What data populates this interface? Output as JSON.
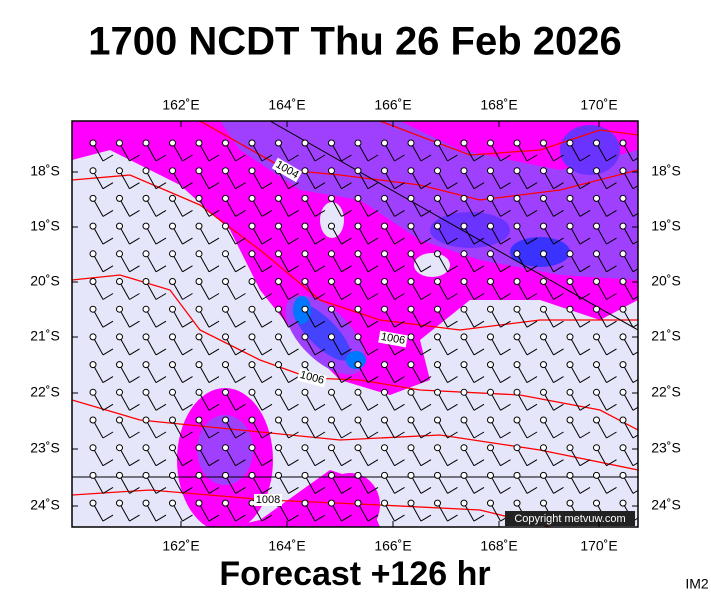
{
  "map": {
    "title": "1700 NCDT Thu 26 Feb 2026",
    "lon_labels": [
      "162˚E",
      "164˚E",
      "166˚E",
      "168˚E",
      "170˚E"
    ],
    "lat_labels": [
      "18˚S",
      "19˚S",
      "20˚S",
      "21˚S",
      "22˚S",
      "23˚S",
      "24˚S"
    ],
    "isobar_labels": [
      "1004",
      "1006",
      "1006",
      "1008"
    ],
    "copyright": "Copyright metvuw.com",
    "footer": "Forecast +126 hr",
    "image_id": "IM2"
  }
}
